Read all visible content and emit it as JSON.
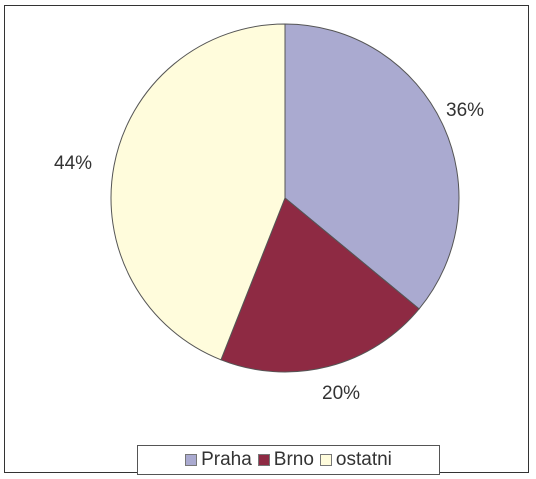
{
  "chart_data": {
    "type": "pie",
    "categories": [
      "Praha",
      "Brno",
      "ostatni"
    ],
    "values": [
      36,
      20,
      44
    ],
    "value_labels": [
      "36%",
      "20%",
      "44%"
    ],
    "colors": [
      "#aaaad0",
      "#8e2a43",
      "#fffcdc"
    ],
    "title": "",
    "legend_position": "bottom",
    "start_angle_deg": 0,
    "direction": "clockwise"
  }
}
